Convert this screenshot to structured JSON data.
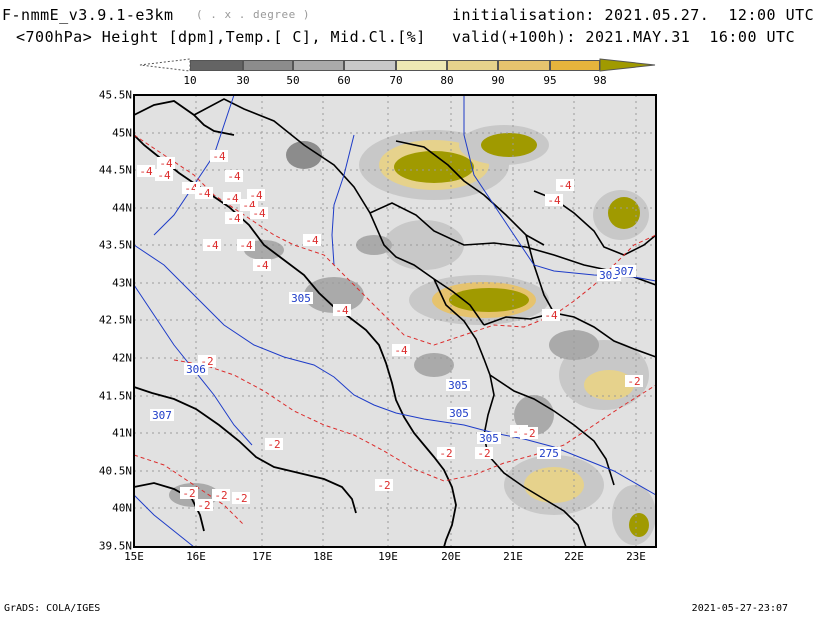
{
  "header": {
    "model": "F-nmmE_v3.9.1-e3km",
    "units_note": "( . x . degree )",
    "fields": "<700hPa> Height [dpm],Temp.[ C], Mid.Cl.[%]",
    "initialisation": "initialisation: 2021.05.27.  12:00 UTC",
    "valid": "valid(+100h): 2021.MAY.31  16:00 UTC"
  },
  "colorbar": {
    "labels": [
      "10",
      "30",
      "50",
      "60",
      "70",
      "80",
      "90",
      "95",
      "98"
    ],
    "colors": [
      "#646464",
      "#8c8c8c",
      "#aaaaaa",
      "#c8c8c8",
      "#eee8b4",
      "#e6d28c",
      "#e6c36e",
      "#e6b43c",
      "#a09a00"
    ]
  },
  "map": {
    "lat_labels": [
      "45.5N",
      "45N",
      "44.5N",
      "44N",
      "43.5N",
      "43N",
      "42.5N",
      "42N",
      "41.5N",
      "41N",
      "40.5N",
      "40N",
      "39.5N"
    ],
    "lon_labels": [
      "15E",
      "16E",
      "17E",
      "18E",
      "19E",
      "20E",
      "21E",
      "22E",
      "23E"
    ],
    "temp_labels": [
      "-4",
      "-4",
      "-4",
      "-4",
      "-4",
      "-4",
      "-4",
      "-4",
      "-4",
      "-4",
      "-4",
      "-4",
      "-4",
      "-4",
      "-4",
      "-4",
      "-4",
      "-4",
      "-4",
      "-4",
      "-4",
      "-2",
      "-2",
      "-2",
      "-2",
      "-2",
      "-2",
      "-2",
      "-2",
      "-2",
      "-2",
      "-2",
      "-2"
    ],
    "height_labels": [
      "305",
      "306",
      "307",
      "305",
      "305",
      "305",
      "305",
      "307",
      "275"
    ],
    "colors": {
      "land": "#e1e1e1",
      "border": "#000000",
      "height_contour": "#1e3cc8",
      "temp_contour": "#dc2d2d"
    }
  },
  "footer": {
    "left": "GrADS: COLA/IGES",
    "right": "2021-05-27-23:07"
  }
}
